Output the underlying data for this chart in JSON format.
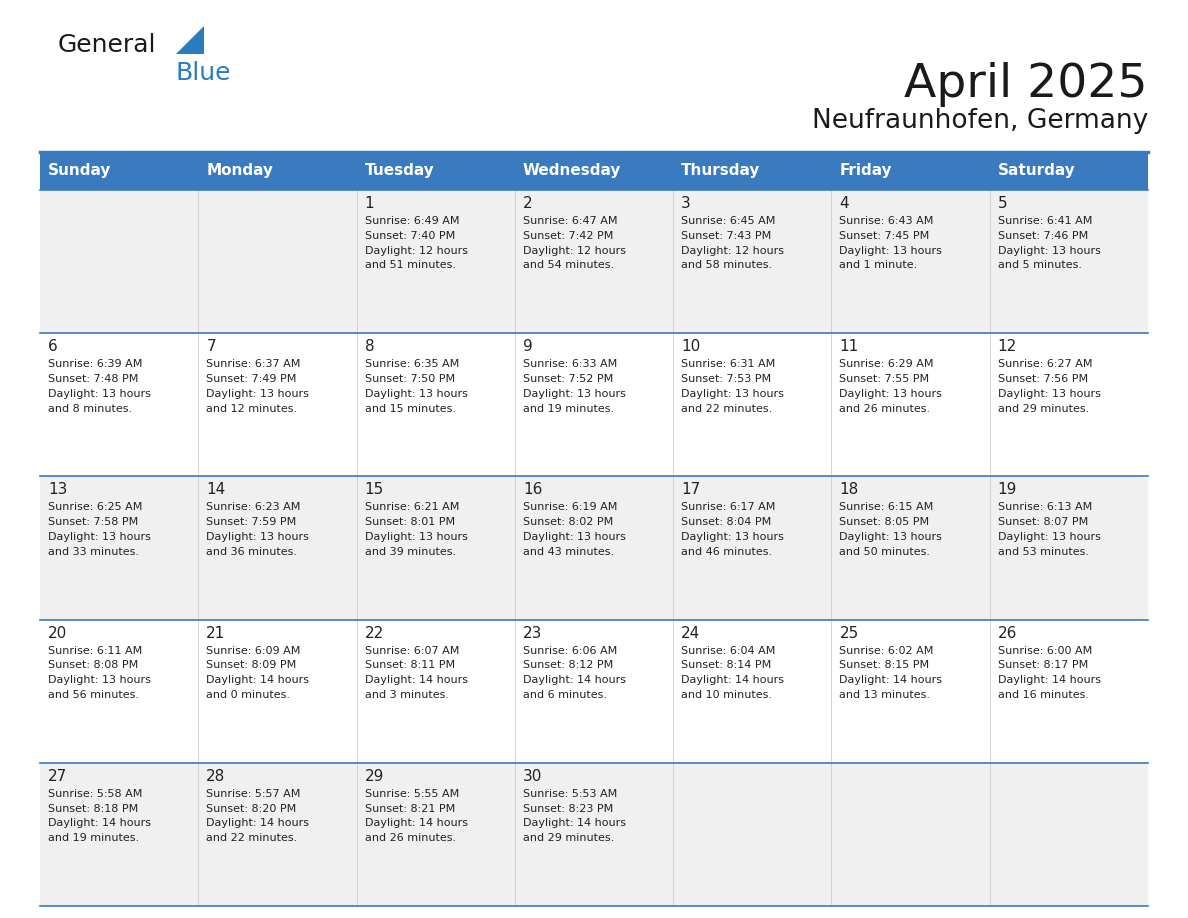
{
  "title": "April 2025",
  "subtitle": "Neufraunhofen, Germany",
  "header_bg": "#3a7abf",
  "header_text_color": "#ffffff",
  "row_bg_odd": "#f0f0f0",
  "row_bg_even": "#ffffff",
  "border_color": "#3a7abf",
  "cell_border_color": "#3a7abf",
  "text_color": "#222222",
  "day_names": [
    "Sunday",
    "Monday",
    "Tuesday",
    "Wednesday",
    "Thursday",
    "Friday",
    "Saturday"
  ],
  "weeks": [
    [
      {
        "day": "",
        "info": ""
      },
      {
        "day": "",
        "info": ""
      },
      {
        "day": "1",
        "info": "Sunrise: 6:49 AM\nSunset: 7:40 PM\nDaylight: 12 hours\nand 51 minutes."
      },
      {
        "day": "2",
        "info": "Sunrise: 6:47 AM\nSunset: 7:42 PM\nDaylight: 12 hours\nand 54 minutes."
      },
      {
        "day": "3",
        "info": "Sunrise: 6:45 AM\nSunset: 7:43 PM\nDaylight: 12 hours\nand 58 minutes."
      },
      {
        "day": "4",
        "info": "Sunrise: 6:43 AM\nSunset: 7:45 PM\nDaylight: 13 hours\nand 1 minute."
      },
      {
        "day": "5",
        "info": "Sunrise: 6:41 AM\nSunset: 7:46 PM\nDaylight: 13 hours\nand 5 minutes."
      }
    ],
    [
      {
        "day": "6",
        "info": "Sunrise: 6:39 AM\nSunset: 7:48 PM\nDaylight: 13 hours\nand 8 minutes."
      },
      {
        "day": "7",
        "info": "Sunrise: 6:37 AM\nSunset: 7:49 PM\nDaylight: 13 hours\nand 12 minutes."
      },
      {
        "day": "8",
        "info": "Sunrise: 6:35 AM\nSunset: 7:50 PM\nDaylight: 13 hours\nand 15 minutes."
      },
      {
        "day": "9",
        "info": "Sunrise: 6:33 AM\nSunset: 7:52 PM\nDaylight: 13 hours\nand 19 minutes."
      },
      {
        "day": "10",
        "info": "Sunrise: 6:31 AM\nSunset: 7:53 PM\nDaylight: 13 hours\nand 22 minutes."
      },
      {
        "day": "11",
        "info": "Sunrise: 6:29 AM\nSunset: 7:55 PM\nDaylight: 13 hours\nand 26 minutes."
      },
      {
        "day": "12",
        "info": "Sunrise: 6:27 AM\nSunset: 7:56 PM\nDaylight: 13 hours\nand 29 minutes."
      }
    ],
    [
      {
        "day": "13",
        "info": "Sunrise: 6:25 AM\nSunset: 7:58 PM\nDaylight: 13 hours\nand 33 minutes."
      },
      {
        "day": "14",
        "info": "Sunrise: 6:23 AM\nSunset: 7:59 PM\nDaylight: 13 hours\nand 36 minutes."
      },
      {
        "day": "15",
        "info": "Sunrise: 6:21 AM\nSunset: 8:01 PM\nDaylight: 13 hours\nand 39 minutes."
      },
      {
        "day": "16",
        "info": "Sunrise: 6:19 AM\nSunset: 8:02 PM\nDaylight: 13 hours\nand 43 minutes."
      },
      {
        "day": "17",
        "info": "Sunrise: 6:17 AM\nSunset: 8:04 PM\nDaylight: 13 hours\nand 46 minutes."
      },
      {
        "day": "18",
        "info": "Sunrise: 6:15 AM\nSunset: 8:05 PM\nDaylight: 13 hours\nand 50 minutes."
      },
      {
        "day": "19",
        "info": "Sunrise: 6:13 AM\nSunset: 8:07 PM\nDaylight: 13 hours\nand 53 minutes."
      }
    ],
    [
      {
        "day": "20",
        "info": "Sunrise: 6:11 AM\nSunset: 8:08 PM\nDaylight: 13 hours\nand 56 minutes."
      },
      {
        "day": "21",
        "info": "Sunrise: 6:09 AM\nSunset: 8:09 PM\nDaylight: 14 hours\nand 0 minutes."
      },
      {
        "day": "22",
        "info": "Sunrise: 6:07 AM\nSunset: 8:11 PM\nDaylight: 14 hours\nand 3 minutes."
      },
      {
        "day": "23",
        "info": "Sunrise: 6:06 AM\nSunset: 8:12 PM\nDaylight: 14 hours\nand 6 minutes."
      },
      {
        "day": "24",
        "info": "Sunrise: 6:04 AM\nSunset: 8:14 PM\nDaylight: 14 hours\nand 10 minutes."
      },
      {
        "day": "25",
        "info": "Sunrise: 6:02 AM\nSunset: 8:15 PM\nDaylight: 14 hours\nand 13 minutes."
      },
      {
        "day": "26",
        "info": "Sunrise: 6:00 AM\nSunset: 8:17 PM\nDaylight: 14 hours\nand 16 minutes."
      }
    ],
    [
      {
        "day": "27",
        "info": "Sunrise: 5:58 AM\nSunset: 8:18 PM\nDaylight: 14 hours\nand 19 minutes."
      },
      {
        "day": "28",
        "info": "Sunrise: 5:57 AM\nSunset: 8:20 PM\nDaylight: 14 hours\nand 22 minutes."
      },
      {
        "day": "29",
        "info": "Sunrise: 5:55 AM\nSunset: 8:21 PM\nDaylight: 14 hours\nand 26 minutes."
      },
      {
        "day": "30",
        "info": "Sunrise: 5:53 AM\nSunset: 8:23 PM\nDaylight: 14 hours\nand 29 minutes."
      },
      {
        "day": "",
        "info": ""
      },
      {
        "day": "",
        "info": ""
      },
      {
        "day": "",
        "info": ""
      }
    ]
  ],
  "logo_color_general": "#1a1a1a",
  "logo_color_blue": "#2b7bbf",
  "title_fontsize": 34,
  "subtitle_fontsize": 19,
  "day_header_fontsize": 11,
  "day_num_fontsize": 11,
  "cell_text_fontsize": 8
}
